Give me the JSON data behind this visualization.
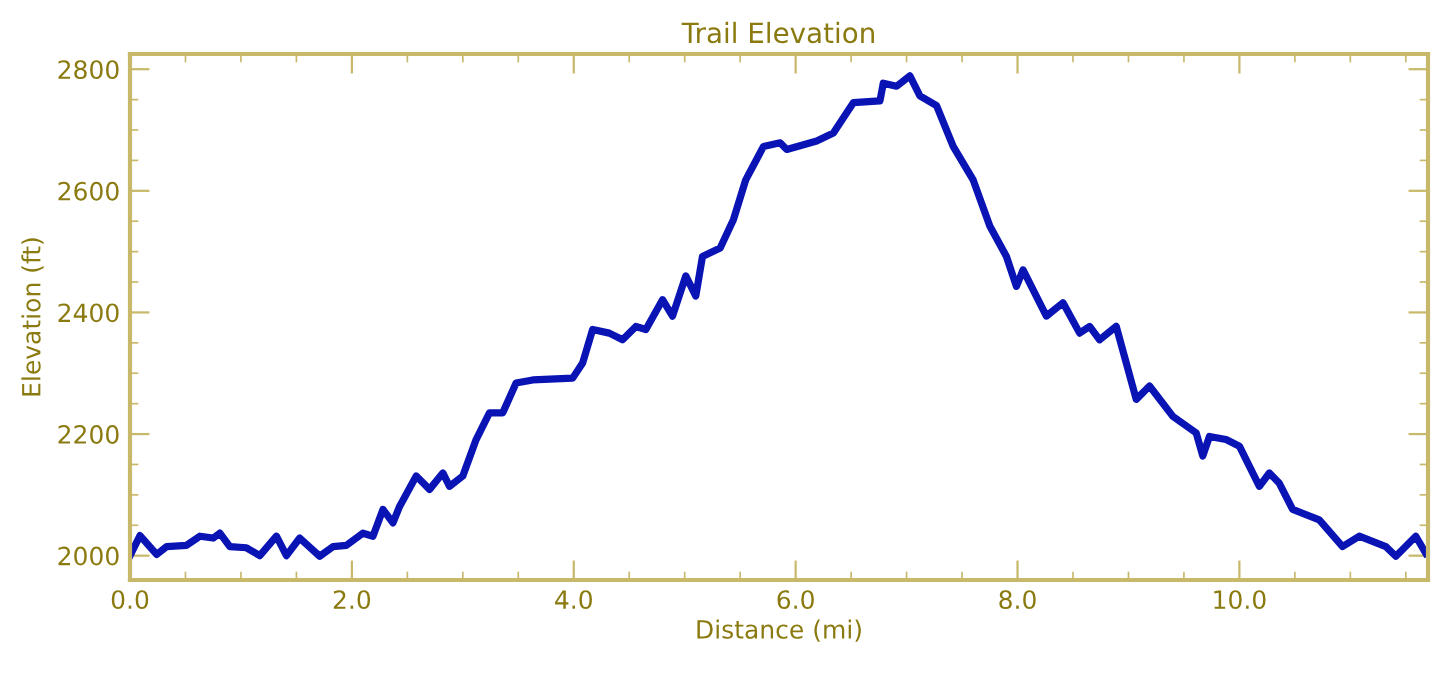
{
  "chart_data": {
    "type": "line",
    "title": "Trail Elevation",
    "xlabel": "Distance (mi)",
    "ylabel": "Elevation (ft)",
    "x": [
      0,
      0.09,
      0.24,
      0.33,
      0.51,
      0.63,
      0.75,
      0.81,
      0.9,
      1.05,
      1.17,
      1.32,
      1.41,
      1.53,
      1.71,
      1.83,
      1.95,
      2.1,
      2.19,
      2.28,
      2.37,
      2.43,
      2.58,
      2.7,
      2.82,
      2.88,
      3.0,
      3.12,
      3.24,
      3.36,
      3.48,
      3.63,
      3.99,
      4.08,
      4.17,
      4.32,
      4.44,
      4.56,
      4.65,
      4.8,
      4.89,
      5.01,
      5.1,
      5.16,
      5.32,
      5.44,
      5.55,
      5.71,
      5.86,
      5.92,
      6.19,
      6.34,
      6.52,
      6.76,
      6.79,
      6.91,
      7.03,
      7.12,
      7.27,
      7.42,
      7.6,
      7.75,
      7.9,
      7.99,
      8.05,
      8.26,
      8.41,
      8.56,
      8.65,
      8.74,
      8.89,
      9.07,
      9.19,
      9.4,
      9.61,
      9.67,
      9.73,
      9.88,
      10.0,
      10.18,
      10.27,
      10.36,
      10.48,
      10.72,
      10.93,
      11.08,
      11.32,
      11.41,
      11.59,
      11.68
    ],
    "series": [
      {
        "color": "#0a14b4",
        "values": [
          2000,
          2033,
          2002,
          2015,
          2017,
          2032,
          2029,
          2037,
          2015,
          2013,
          2000,
          2032,
          2000,
          2029,
          1999,
          2015,
          2017,
          2037,
          2032,
          2076,
          2054,
          2081,
          2131,
          2109,
          2136,
          2114,
          2131,
          2191,
          2235,
          2235,
          2284,
          2289,
          2292,
          2317,
          2372,
          2366,
          2355,
          2377,
          2372,
          2421,
          2394,
          2460,
          2427,
          2492,
          2506,
          2553,
          2618,
          2673,
          2679,
          2668,
          2682,
          2695,
          2745,
          2748,
          2777,
          2772,
          2789,
          2756,
          2740,
          2673,
          2618,
          2542,
          2492,
          2443,
          2470,
          2394,
          2416,
          2366,
          2377,
          2355,
          2377,
          2257,
          2279,
          2229,
          2202,
          2164,
          2196,
          2191,
          2180,
          2114,
          2136,
          2119,
          2076,
          2059,
          2015,
          2032,
          2015,
          1999,
          2032,
          2004
        ]
      }
    ],
    "xlim": [
      0,
      11.7
    ],
    "ylim": [
      1960,
      2825
    ],
    "xticks": [
      {
        "value": 0,
        "label": "0.0"
      },
      {
        "value": 2,
        "label": "2.0"
      },
      {
        "value": 4,
        "label": "4.0"
      },
      {
        "value": 6,
        "label": "6.0"
      },
      {
        "value": 8,
        "label": "8.0"
      },
      {
        "value": 10,
        "label": "10.0"
      }
    ],
    "yticks": [
      2000,
      2200,
      2400,
      2600,
      2800
    ],
    "grid": false,
    "legend": false,
    "marker": "none",
    "line_style": "solid"
  }
}
